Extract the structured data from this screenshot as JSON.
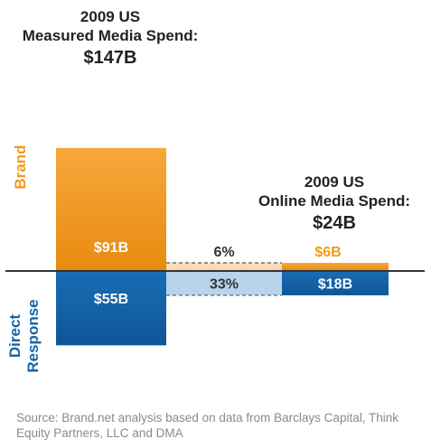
{
  "chart_data": {
    "type": "bar",
    "unit_prefix": "$",
    "unit_suffix": "B",
    "categories": [
      {
        "title_lines": [
          "2009 US",
          "Measured Media Spend:"
        ],
        "total_label": "$147B",
        "total": 147
      },
      {
        "title_lines": [
          "2009 US",
          "Online Media Spend:"
        ],
        "total_label": "$24B",
        "total": 24
      }
    ],
    "series": [
      {
        "name": "Brand",
        "color": "#f39a1e",
        "values": [
          91,
          6
        ],
        "value_labels": [
          "$91B",
          "$6B"
        ]
      },
      {
        "name": "Direct Response",
        "name_lines": [
          "Direct",
          "Response"
        ],
        "color": "#1565a8",
        "values": [
          55,
          18
        ],
        "value_labels": [
          "$55B",
          "$18B"
        ]
      }
    ],
    "annotations": [
      {
        "series": "Brand",
        "label": "6%",
        "color": "#f7dcb6"
      },
      {
        "series": "Direct Response",
        "label": "33%",
        "color": "#b8d4ec"
      }
    ],
    "axis_line_color": "#333333"
  },
  "source_text": "Source: Brand.net analysis based on data from Barclays Capital, Think Equity Partners, LLC and DMA"
}
